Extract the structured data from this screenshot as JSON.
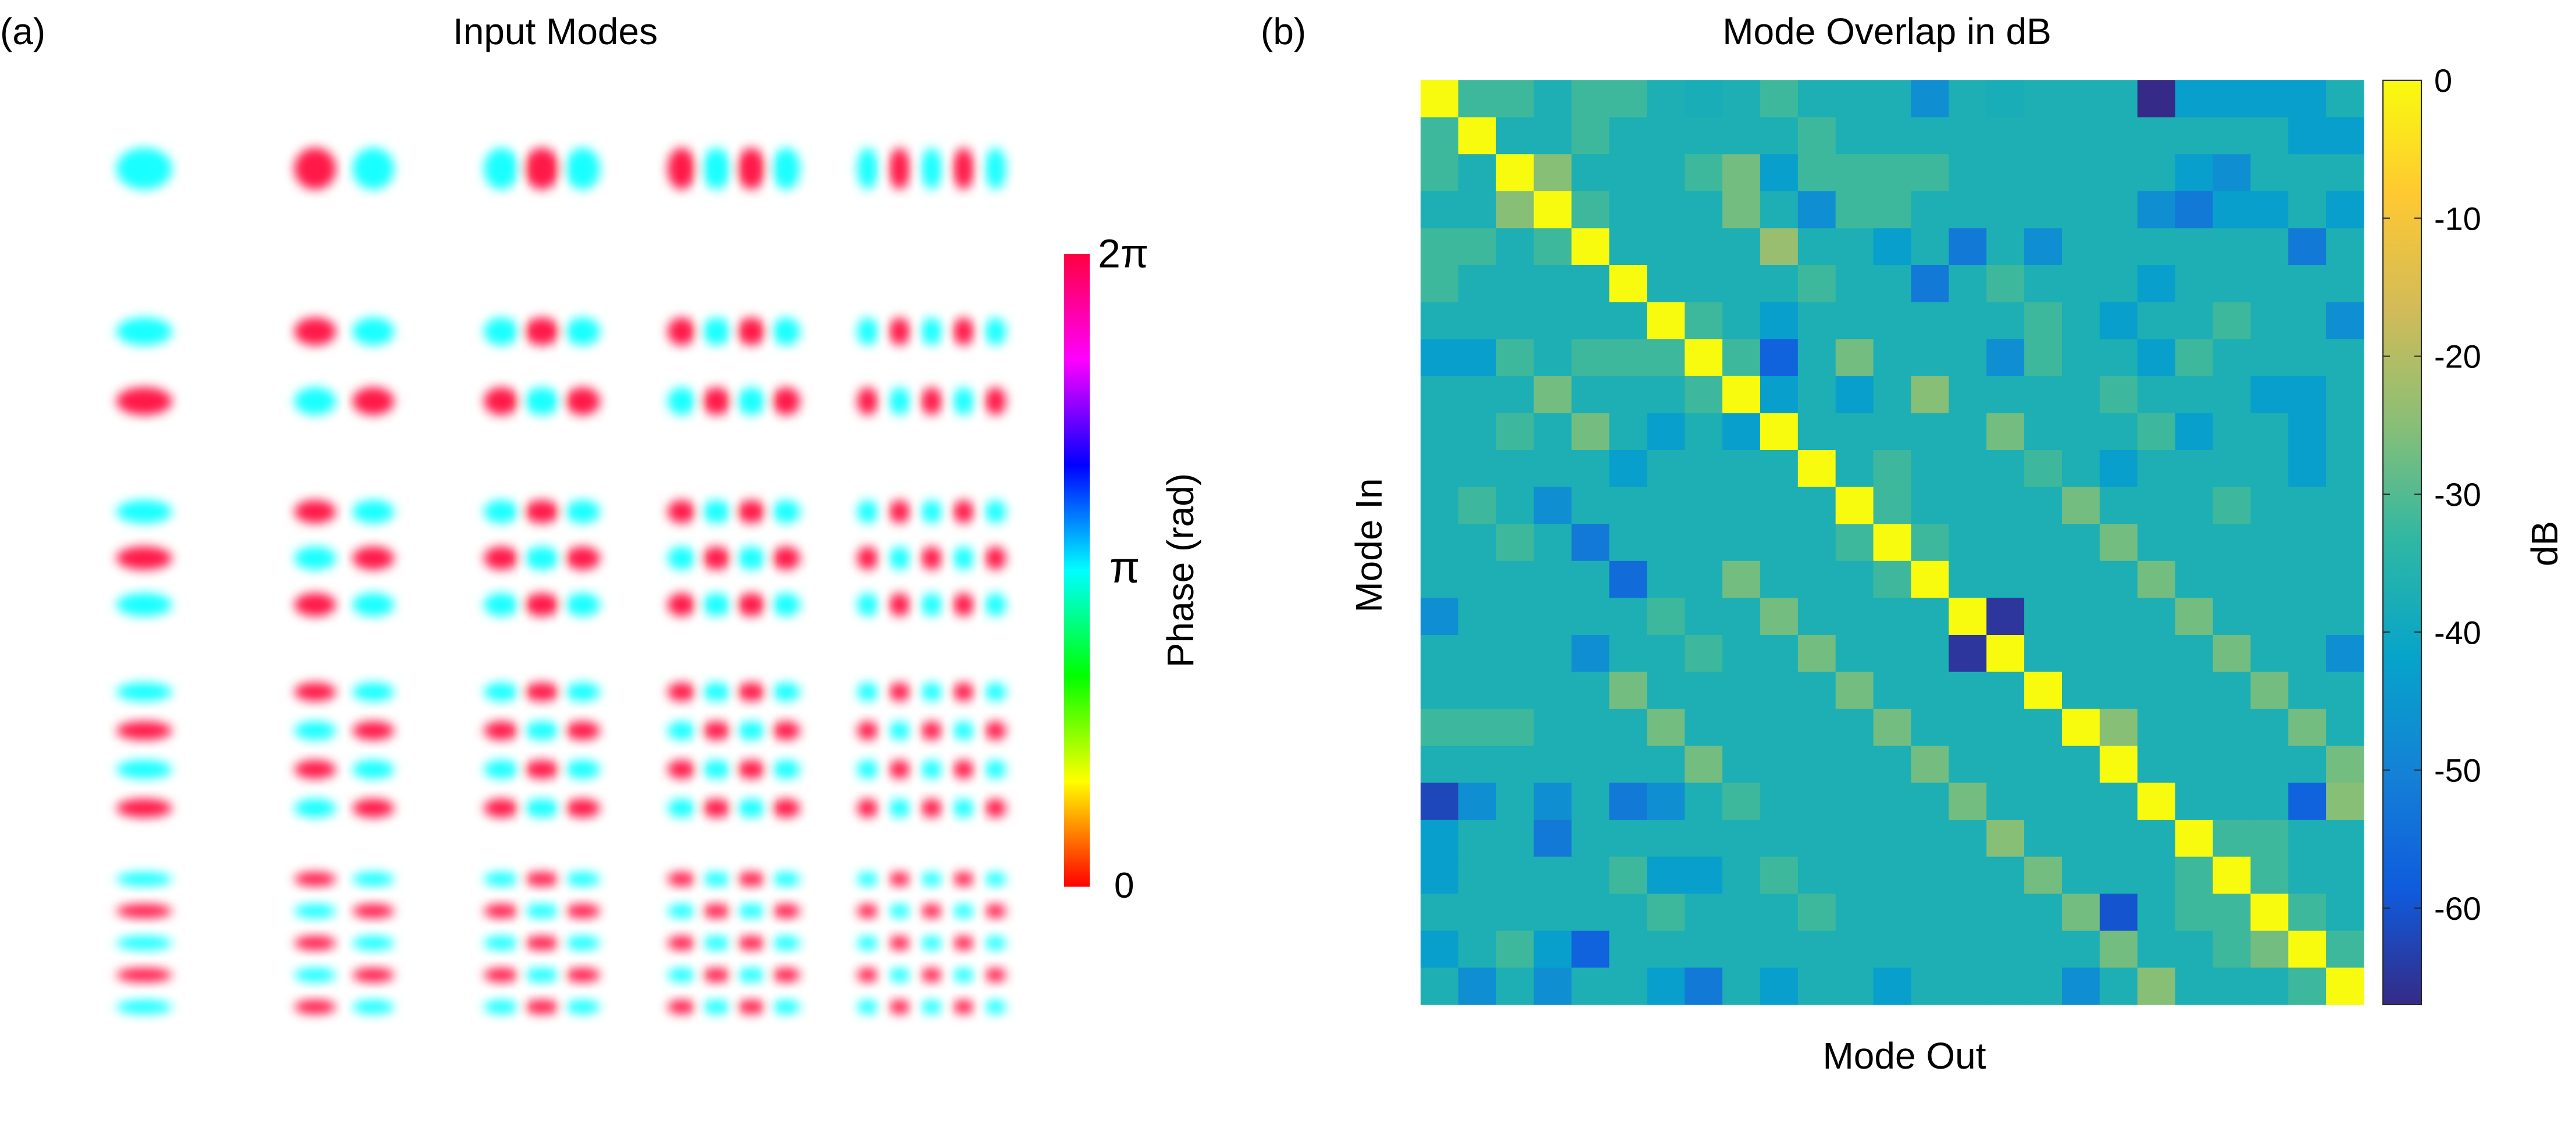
{
  "panel_a": {
    "label": "(a)",
    "title": "Input Modes",
    "colorbar": {
      "label": "Phase (rad)",
      "ticks": [
        "0",
        "π",
        "2π"
      ],
      "range": [
        0,
        6.2832
      ]
    }
  },
  "panel_b": {
    "label": "(b)",
    "title": "Mode Overlap in dB",
    "xlabel": "Mode Out",
    "ylabel": "Mode In",
    "colorbar": {
      "label": "dB",
      "ticks": [
        "0",
        "-10",
        "-20",
        "-30",
        "-40",
        "-50",
        "-60"
      ],
      "range": [
        -67,
        0
      ]
    }
  },
  "chart_data": [
    {
      "type": "image-grid",
      "title": "Input Modes",
      "description_modes": "Hermite-Gaussian modes HG(m,n), columns m = 0..4, rows n = 0..4; intensity-weighted phase shown with HSV colormap",
      "m_values": [
        0,
        1,
        2,
        3,
        4
      ],
      "n_values": [
        0,
        1,
        2,
        3,
        4
      ],
      "phase_colormap": "hsv",
      "phase_range_rad": [
        0,
        6.2832
      ]
    },
    {
      "type": "heatmap",
      "title": "Mode Overlap in dB",
      "xlabel": "Mode Out",
      "ylabel": "Mode In",
      "colormap": "parula",
      "clim": [
        -67,
        0
      ],
      "n_modes": 25,
      "matrix": [
        [
          0,
          -32,
          -32,
          -37,
          -32,
          -32,
          -37,
          -38,
          -37,
          -32,
          -37,
          -37,
          -37,
          -47,
          -37,
          -38,
          -37,
          -37,
          -37,
          -67,
          -43,
          -43,
          -43,
          -43,
          -37
        ],
        [
          -32,
          0,
          -37,
          -37,
          -32,
          -37,
          -37,
          -37,
          -37,
          -37,
          -32,
          -37,
          -37,
          -37,
          -37,
          -37,
          -37,
          -37,
          -37,
          -37,
          -37,
          -37,
          -37,
          -43,
          -43
        ],
        [
          -32,
          -37,
          0,
          -25,
          -37,
          -37,
          -37,
          -32,
          -27,
          -43,
          -32,
          -32,
          -32,
          -32,
          -37,
          -37,
          -37,
          -37,
          -37,
          -37,
          -43,
          -47,
          -37,
          -37,
          -37
        ],
        [
          -37,
          -37,
          -25,
          0,
          -32,
          -37,
          -37,
          -37,
          -27,
          -37,
          -47,
          -32,
          -32,
          -37,
          -37,
          -37,
          -37,
          -37,
          -37,
          -47,
          -52,
          -43,
          -43,
          -37,
          -43
        ],
        [
          -32,
          -32,
          -37,
          -32,
          0,
          -37,
          -37,
          -37,
          -37,
          -23,
          -37,
          -37,
          -43,
          -37,
          -52,
          -37,
          -47,
          -37,
          -37,
          -37,
          -37,
          -37,
          -37,
          -52,
          -37
        ],
        [
          -32,
          -37,
          -37,
          -37,
          -37,
          0,
          -37,
          -37,
          -37,
          -37,
          -32,
          -37,
          -37,
          -52,
          -37,
          -32,
          -37,
          -37,
          -37,
          -43,
          -37,
          -37,
          -37,
          -37,
          -37
        ],
        [
          -37,
          -37,
          -37,
          -37,
          -37,
          -37,
          0,
          -32,
          -37,
          -43,
          -37,
          -37,
          -37,
          -37,
          -37,
          -37,
          -32,
          -37,
          -43,
          -37,
          -37,
          -32,
          -37,
          -37,
          -47
        ],
        [
          -43,
          -43,
          -32,
          -37,
          -32,
          -32,
          -32,
          0,
          -32,
          -57,
          -37,
          -27,
          -37,
          -37,
          -37,
          -47,
          -32,
          -37,
          -37,
          -43,
          -32,
          -37,
          -37,
          -37,
          -37
        ],
        [
          -37,
          -37,
          -37,
          -27,
          -37,
          -37,
          -37,
          -32,
          0,
          -43,
          -37,
          -43,
          -37,
          -25,
          -37,
          -37,
          -37,
          -37,
          -32,
          -37,
          -37,
          -37,
          -43,
          -43,
          -37
        ],
        [
          -37,
          -37,
          -32,
          -37,
          -27,
          -37,
          -43,
          -37,
          -43,
          0,
          -37,
          -37,
          -37,
          -37,
          -37,
          -27,
          -37,
          -37,
          -37,
          -32,
          -43,
          -37,
          -37,
          -43,
          -37
        ],
        [
          -37,
          -37,
          -37,
          -37,
          -37,
          -43,
          -37,
          -37,
          -37,
          -37,
          0,
          -37,
          -32,
          -37,
          -37,
          -37,
          -32,
          -37,
          -43,
          -37,
          -37,
          -37,
          -37,
          -43,
          -37
        ],
        [
          -37,
          -32,
          -37,
          -47,
          -37,
          -37,
          -37,
          -37,
          -37,
          -37,
          -37,
          0,
          -32,
          -37,
          -37,
          -37,
          -37,
          -27,
          -37,
          -37,
          -37,
          -32,
          -37,
          -37,
          -37
        ],
        [
          -37,
          -37,
          -32,
          -37,
          -52,
          -37,
          -37,
          -37,
          -37,
          -37,
          -37,
          -32,
          0,
          -32,
          -37,
          -37,
          -37,
          -37,
          -27,
          -37,
          -37,
          -37,
          -37,
          -37,
          -37
        ],
        [
          -37,
          -37,
          -37,
          -37,
          -37,
          -55,
          -37,
          -37,
          -27,
          -37,
          -37,
          -37,
          -32,
          0,
          -37,
          -37,
          -37,
          -37,
          -37,
          -27,
          -37,
          -37,
          -37,
          -37,
          -37
        ],
        [
          -47,
          -37,
          -37,
          -37,
          -37,
          -37,
          -32,
          -37,
          -37,
          -27,
          -37,
          -37,
          -37,
          -37,
          0,
          -65,
          -37,
          -37,
          -37,
          -37,
          -27,
          -37,
          -37,
          -37,
          -37
        ],
        [
          -37,
          -37,
          -37,
          -37,
          -47,
          -37,
          -37,
          -32,
          -37,
          -37,
          -27,
          -37,
          -37,
          -37,
          -65,
          0,
          -37,
          -37,
          -37,
          -37,
          -37,
          -27,
          -37,
          -37,
          -47
        ],
        [
          -37,
          -37,
          -37,
          -37,
          -37,
          -27,
          -37,
          -37,
          -37,
          -37,
          -37,
          -27,
          -37,
          -37,
          -37,
          -37,
          0,
          -37,
          -37,
          -37,
          -37,
          -37,
          -27,
          -37,
          -37
        ],
        [
          -32,
          -32,
          -32,
          -37,
          -37,
          -37,
          -27,
          -37,
          -37,
          -37,
          -37,
          -37,
          -27,
          -37,
          -37,
          -37,
          -37,
          0,
          -25,
          -37,
          -37,
          -37,
          -37,
          -27,
          -37
        ],
        [
          -37,
          -37,
          -37,
          -37,
          -37,
          -37,
          -37,
          -27,
          -37,
          -37,
          -37,
          -37,
          -37,
          -27,
          -37,
          -37,
          -37,
          -37,
          0,
          -37,
          -37,
          -37,
          -37,
          -37,
          -27
        ],
        [
          -62,
          -47,
          -37,
          -47,
          -37,
          -52,
          -47,
          -37,
          -32,
          -37,
          -37,
          -37,
          -37,
          -37,
          -27,
          -37,
          -37,
          -37,
          -37,
          0,
          -37,
          -37,
          -37,
          -57,
          -25
        ],
        [
          -43,
          -37,
          -37,
          -52,
          -37,
          -37,
          -37,
          -37,
          -37,
          -37,
          -37,
          -37,
          -37,
          -37,
          -37,
          -25,
          -37,
          -37,
          -37,
          -37,
          0,
          -32,
          -32,
          -37,
          -37
        ],
        [
          -43,
          -37,
          -37,
          -37,
          -37,
          -32,
          -43,
          -43,
          -37,
          -32,
          -37,
          -37,
          -37,
          -37,
          -37,
          -37,
          -27,
          -37,
          -37,
          -37,
          -32,
          0,
          -32,
          -37,
          -37
        ],
        [
          -37,
          -37,
          -37,
          -37,
          -37,
          -37,
          -32,
          -37,
          -37,
          -37,
          -32,
          -37,
          -37,
          -37,
          -37,
          -37,
          -37,
          -27,
          -60,
          -37,
          -32,
          -32,
          0,
          -32,
          -37
        ],
        [
          -43,
          -37,
          -32,
          -43,
          -57,
          -37,
          -37,
          -37,
          -37,
          -37,
          -37,
          -37,
          -37,
          -37,
          -37,
          -37,
          -37,
          -37,
          -27,
          -37,
          -37,
          -32,
          -27,
          0,
          -32
        ],
        [
          -37,
          -47,
          -37,
          -47,
          -37,
          -37,
          -43,
          -52,
          -37,
          -43,
          -37,
          -37,
          -43,
          -37,
          -37,
          -37,
          -37,
          -47,
          -37,
          -25,
          -37,
          -37,
          -37,
          -32,
          0
        ]
      ]
    }
  ]
}
